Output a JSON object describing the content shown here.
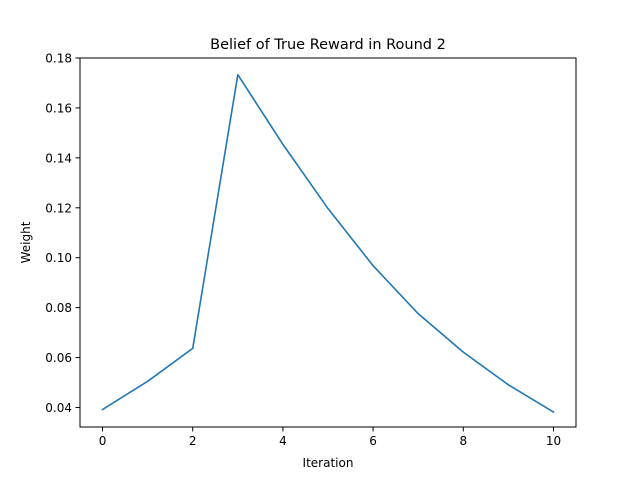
{
  "chart_data": {
    "type": "line",
    "title": "Belief of True Reward in Round 2",
    "xlabel": "Iteration",
    "ylabel": "Weight",
    "xlim": [
      -0.5,
      10.5
    ],
    "ylim": [
      0.0322,
      0.18
    ],
    "xticks": [
      0,
      2,
      4,
      6,
      8,
      10
    ],
    "xtick_labels": [
      "0",
      "2",
      "4",
      "6",
      "8",
      "10"
    ],
    "yticks": [
      0.04,
      0.06,
      0.08,
      0.1,
      0.12,
      0.14,
      0.16,
      0.18
    ],
    "ytick_labels": [
      "0.04",
      "0.06",
      "0.08",
      "0.10",
      "0.12",
      "0.14",
      "0.16",
      "0.18"
    ],
    "grid": false,
    "series": [
      {
        "color": "#1f77b4",
        "x": [
          0,
          1,
          2,
          3,
          4,
          5,
          6,
          7,
          8,
          9,
          10
        ],
        "values": [
          0.0392,
          0.0505,
          0.0637,
          0.1733,
          0.1454,
          0.1197,
          0.0968,
          0.0776,
          0.0622,
          0.0491,
          0.0382
        ]
      }
    ]
  }
}
